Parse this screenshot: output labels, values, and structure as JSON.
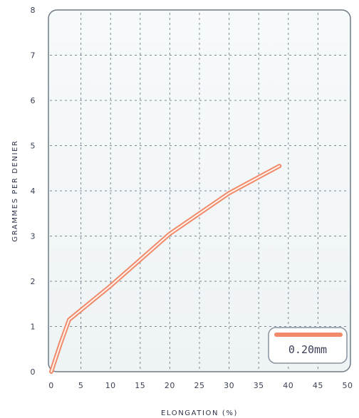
{
  "chart_data": {
    "type": "line",
    "xlabel": "ELONGATION (%)",
    "ylabel": "GRAMMES PER DENIER",
    "xlim": [
      0,
      50
    ],
    "ylim": [
      0,
      8
    ],
    "x_ticks": [
      "0",
      "5",
      "10",
      "15",
      "20",
      "25",
      "30",
      "35",
      "40",
      "45",
      "50"
    ],
    "y_ticks": [
      "0",
      "1",
      "2",
      "3",
      "4",
      "5",
      "6",
      "7",
      "8"
    ],
    "grid": true,
    "legend_position": "bottom-right",
    "series": [
      {
        "name": "0.20mm",
        "color": "#f08a6a",
        "x": [
          0,
          1.5,
          3,
          10,
          20,
          30,
          38.5
        ],
        "y": [
          0,
          0.6,
          1.15,
          1.9,
          3.05,
          3.95,
          4.55
        ]
      }
    ]
  }
}
